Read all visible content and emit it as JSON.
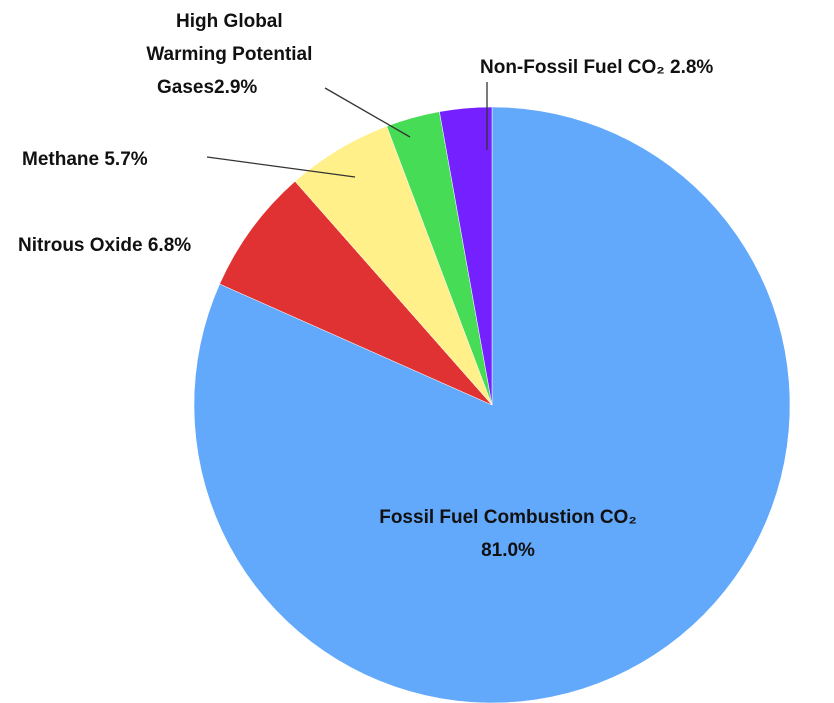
{
  "chart_data": {
    "type": "pie",
    "categories": [
      "Fossil Fuel Combustion CO₂",
      "Nitrous Oxide",
      "Methane",
      "High Global Warming Potential Gases",
      "Non-Fossil Fuel CO₂"
    ],
    "values": [
      81.0,
      6.8,
      5.7,
      2.9,
      2.8
    ],
    "value_labels": [
      "81.0%",
      "6.8%",
      "5.7%",
      "2.9%",
      "2.8%"
    ],
    "colors": [
      "#62a8fb",
      "#e03232",
      "#fff08a",
      "#46dc55",
      "#7420ff"
    ]
  }
}
